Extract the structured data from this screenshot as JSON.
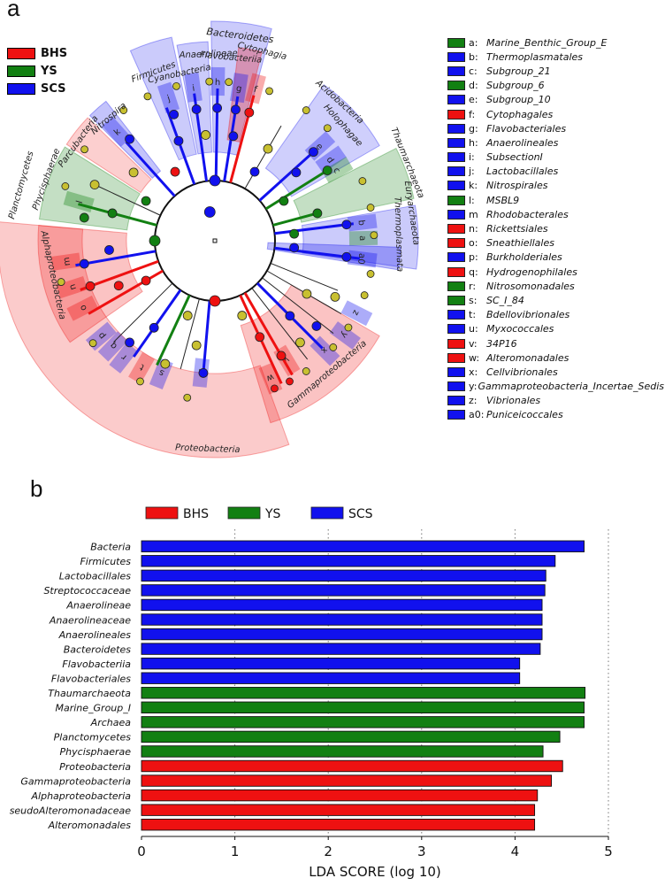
{
  "panel_a_label": "a",
  "panel_b_label": "b",
  "colors": {
    "BHS": "#ee1111",
    "YS": "#128012",
    "SCS": "#1111ee",
    "node_default": "#c8c030"
  },
  "group_legend": [
    {
      "name": "BHS",
      "color": "#ee1111"
    },
    {
      "name": "YS",
      "color": "#128012"
    },
    {
      "name": "SCS",
      "color": "#1111ee"
    }
  ],
  "cladogram": {
    "ring_labels": {
      "firmicutes": "Firmicutes",
      "cyanobacteria": "Cyanobacteria",
      "anaerolineae": "Anaerolineae",
      "bacteroidetes": "Bacteroidetes",
      "flavobacteriia": "Flavobacteriia",
      "cytophagia": "Cytophagia",
      "acidobacteria": "Acidobacteria",
      "holophagae": "Holophagae",
      "thaumarchaeota": "Thaumarchaeota",
      "euryarchaeota": "Euryarchaeota",
      "thermoplasmata": "Thermoplasmata",
      "parcubacteria": "Parcubacteria",
      "nitrospira": "Nitrospira",
      "planctomycetes": "Planctomycetes",
      "phycisphaerae": "Phycisphaerae",
      "alphaproteobacteria": "Alphaproteobacteria",
      "gammaproteobacteria": "Gammaproteobacteria",
      "proteobacteria": "Proteobacteria"
    },
    "legend": [
      {
        "key": "a:",
        "name": "Marine_Benthic_Group_E",
        "group": "YS"
      },
      {
        "key": "b:",
        "name": "Thermoplasmatales",
        "group": "SCS"
      },
      {
        "key": "c:",
        "name": "Subgroup_21",
        "group": "SCS"
      },
      {
        "key": "d:",
        "name": "Subgroup_6",
        "group": "YS"
      },
      {
        "key": "e:",
        "name": "Subgroup_10",
        "group": "SCS"
      },
      {
        "key": "f:",
        "name": "Cytophagales",
        "group": "BHS"
      },
      {
        "key": "g:",
        "name": "Flavobacteriales",
        "group": "SCS"
      },
      {
        "key": "h:",
        "name": "Anaerolineales",
        "group": "SCS"
      },
      {
        "key": "i:",
        "name": "SubsectionI",
        "group": "SCS"
      },
      {
        "key": "j:",
        "name": "Lactobacillales",
        "group": "SCS"
      },
      {
        "key": "k:",
        "name": "Nitrospirales",
        "group": "SCS"
      },
      {
        "key": "l:",
        "name": "MSBL9",
        "group": "YS"
      },
      {
        "key": "m",
        "name": "Rhodobacterales",
        "group": "SCS"
      },
      {
        "key": "n:",
        "name": "Rickettsiales",
        "group": "BHS"
      },
      {
        "key": "o:",
        "name": "Sneathiellales",
        "group": "BHS"
      },
      {
        "key": "p:",
        "name": "Burkholderiales",
        "group": "SCS"
      },
      {
        "key": "q:",
        "name": "Hydrogenophilales",
        "group": "BHS"
      },
      {
        "key": "r:",
        "name": "Nitrosomonadales",
        "group": "YS"
      },
      {
        "key": "s:",
        "name": "SC_I_84",
        "group": "YS"
      },
      {
        "key": "t:",
        "name": "Bdellovibrionales",
        "group": "SCS"
      },
      {
        "key": "u:",
        "name": "Myxococcales",
        "group": "SCS"
      },
      {
        "key": "v:",
        "name": "34P16",
        "group": "BHS"
      },
      {
        "key": "w:",
        "name": "Alteromonadales",
        "group": "BHS"
      },
      {
        "key": "x:",
        "name": "Cellvibrionales",
        "group": "SCS"
      },
      {
        "key": "y:",
        "name": "Gammaproteobacteria_Incertae_Sedis",
        "group": "SCS"
      },
      {
        "key": "z:",
        "name": "Vibrionales",
        "group": "SCS"
      },
      {
        "key": "a0:",
        "name": "Puniceicoccales",
        "group": "SCS"
      }
    ]
  },
  "chart_data": {
    "type": "bar",
    "orientation": "horizontal",
    "title": "",
    "xlabel": "LDA SCORE (log 10)",
    "ylabel": "",
    "xlim": [
      0,
      5
    ],
    "xticks": [
      "0",
      "1",
      "2",
      "3",
      "4",
      "5"
    ],
    "legend": [
      {
        "name": "BHS",
        "color": "#ee1111"
      },
      {
        "name": "YS",
        "color": "#128012"
      },
      {
        "name": "SCS",
        "color": "#1111ee"
      }
    ],
    "categories": [
      "Bacteria",
      "Firmicutes",
      "Lactobacillales",
      "Streptococcaceae",
      "Anaerolineae",
      "Anaerolineaceae",
      "Anaerolineales",
      "Bacteroidetes",
      "Flavobacteriia",
      "Flavobacteriales",
      "Thaumarchaeota",
      "Marine_Group_I",
      "Archaea",
      "Planctomycetes",
      "Phycisphaerae",
      "Proteobacteria",
      "Gammaproteobacteria",
      "Alphaproteobacteria",
      "seudoAlteromonadaceae",
      "Alteromonadales"
    ],
    "values": [
      4.74,
      4.43,
      4.33,
      4.32,
      4.29,
      4.29,
      4.29,
      4.27,
      4.05,
      4.05,
      4.75,
      4.74,
      4.74,
      4.48,
      4.3,
      4.51,
      4.39,
      4.24,
      4.21,
      4.21
    ],
    "groups": [
      "SCS",
      "SCS",
      "SCS",
      "SCS",
      "SCS",
      "SCS",
      "SCS",
      "SCS",
      "SCS",
      "SCS",
      "YS",
      "YS",
      "YS",
      "YS",
      "YS",
      "BHS",
      "BHS",
      "BHS",
      "BHS",
      "BHS"
    ]
  }
}
